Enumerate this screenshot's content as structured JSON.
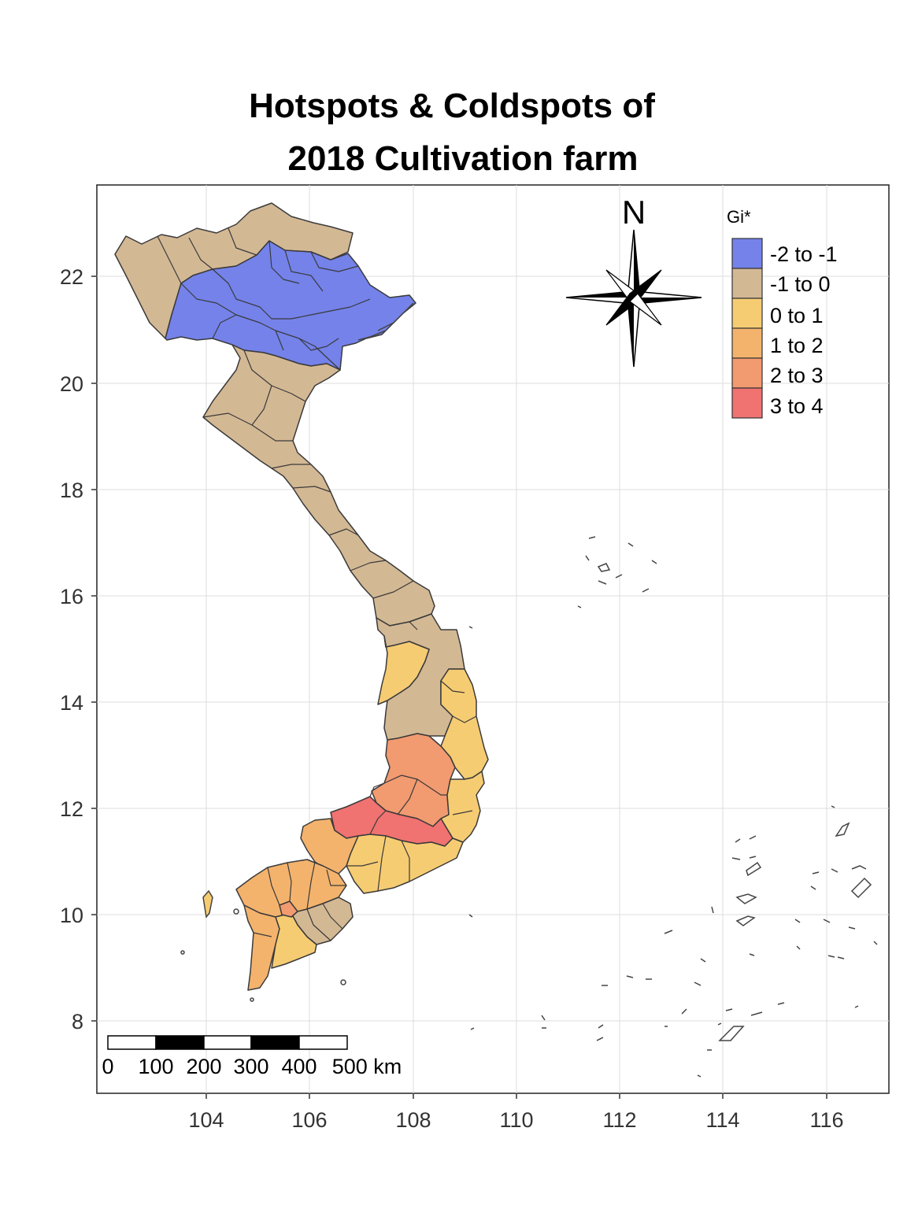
{
  "title": {
    "line1": "Hotspots & Coldspots of",
    "line2": "2018 Cultivation farm"
  },
  "axes": {
    "x_ticks": [
      "104",
      "106",
      "108",
      "110",
      "112",
      "114",
      "116"
    ],
    "y_ticks": [
      "22",
      "20",
      "18",
      "16",
      "14",
      "12",
      "10",
      "8"
    ]
  },
  "north_arrow": {
    "label": "N"
  },
  "legend": {
    "title": "Gi*",
    "items": [
      {
        "label": "-2 to -1",
        "color": "#7482ea"
      },
      {
        "label": "-1 to 0",
        "color": "#d3b894"
      },
      {
        "label": "0 to 1",
        "color": "#f6cc73"
      },
      {
        "label": "1 to 2",
        "color": "#f3b36d"
      },
      {
        "label": "2 to 3",
        "color": "#f29a70"
      },
      {
        "label": "3 to 4",
        "color": "#f07271"
      }
    ]
  },
  "scale_bar": {
    "labels": [
      "0",
      "100",
      "200",
      "300",
      "400",
      "500 km"
    ]
  },
  "colors": {
    "border": "#3a3a3a",
    "grid": "#dedede",
    "frame": "#222222"
  }
}
